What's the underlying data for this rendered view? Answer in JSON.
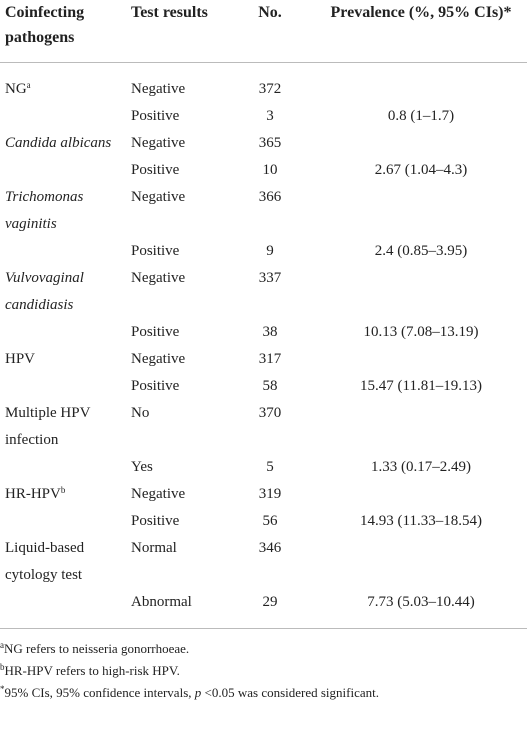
{
  "table": {
    "header": [
      "Coinfecting pathogens",
      "Test results",
      "No.",
      "Prevalence (%, 95% CIs)*"
    ],
    "groups": [
      {
        "pathogen": "NG",
        "sup": "a",
        "italic": false,
        "rows": [
          {
            "result": "Negative",
            "no": 372
          },
          {
            "result": "Positive",
            "no": 3,
            "prevalence": "0.8 (1–1.7)"
          }
        ]
      },
      {
        "pathogen": "Candida albicans",
        "italic": true,
        "rows": [
          {
            "result": "Negative",
            "no": 365
          },
          {
            "result": "Positive",
            "no": 10,
            "prevalence": "2.67 (1.04–4.3)"
          }
        ]
      },
      {
        "pathogen": "Trichomonas vaginitis",
        "italic": true,
        "rows": [
          {
            "result": "Negative",
            "no": 366
          },
          {
            "result": "Positive",
            "no": 9,
            "prevalence": "2.4 (0.85–3.95)"
          }
        ]
      },
      {
        "pathogen": "Vulvovaginal candidiasis",
        "italic": true,
        "rows": [
          {
            "result": "Negative",
            "no": 337
          },
          {
            "result": "Positive",
            "no": 38,
            "prevalence": "10.13 (7.08–13.19)"
          }
        ]
      },
      {
        "pathogen": "HPV",
        "italic": false,
        "rows": [
          {
            "result": "Negative",
            "no": 317
          },
          {
            "result": "Positive",
            "no": 58,
            "prevalence": "15.47 (11.81–19.13)"
          }
        ]
      },
      {
        "pathogen": "Multiple HPV infection",
        "italic": false,
        "rows": [
          {
            "result": "No",
            "no": 370
          },
          {
            "result": "Yes",
            "no": 5,
            "prevalence": "1.33 (0.17–2.49)"
          }
        ]
      },
      {
        "pathogen": "HR-HPV",
        "sup": "b",
        "italic": false,
        "rows": [
          {
            "result": "Negative",
            "no": 319
          },
          {
            "result": "Positive",
            "no": 56,
            "prevalence": "14.93 (11.33–18.54)"
          }
        ]
      },
      {
        "pathogen": "Liquid-based cytology test",
        "italic": false,
        "rows": [
          {
            "result": "Normal",
            "no": 346
          },
          {
            "result": "Abnormal",
            "no": 29,
            "prevalence": "7.73 (5.03–10.44)"
          }
        ]
      }
    ],
    "footnotes": [
      {
        "mark": "a",
        "parts": [
          {
            "text": "NG refers to neisseria gonorrhoeae.",
            "italic": false
          }
        ]
      },
      {
        "mark": "b",
        "parts": [
          {
            "text": "HR-HPV refers to high-risk HPV.",
            "italic": false
          }
        ]
      },
      {
        "mark": "*",
        "parts": [
          {
            "text": "95% CIs, 95% confidence intervals, ",
            "italic": false
          },
          {
            "text": "p",
            "italic": true
          },
          {
            "text": " <0.05 was considered significant.",
            "italic": false
          }
        ]
      }
    ]
  }
}
